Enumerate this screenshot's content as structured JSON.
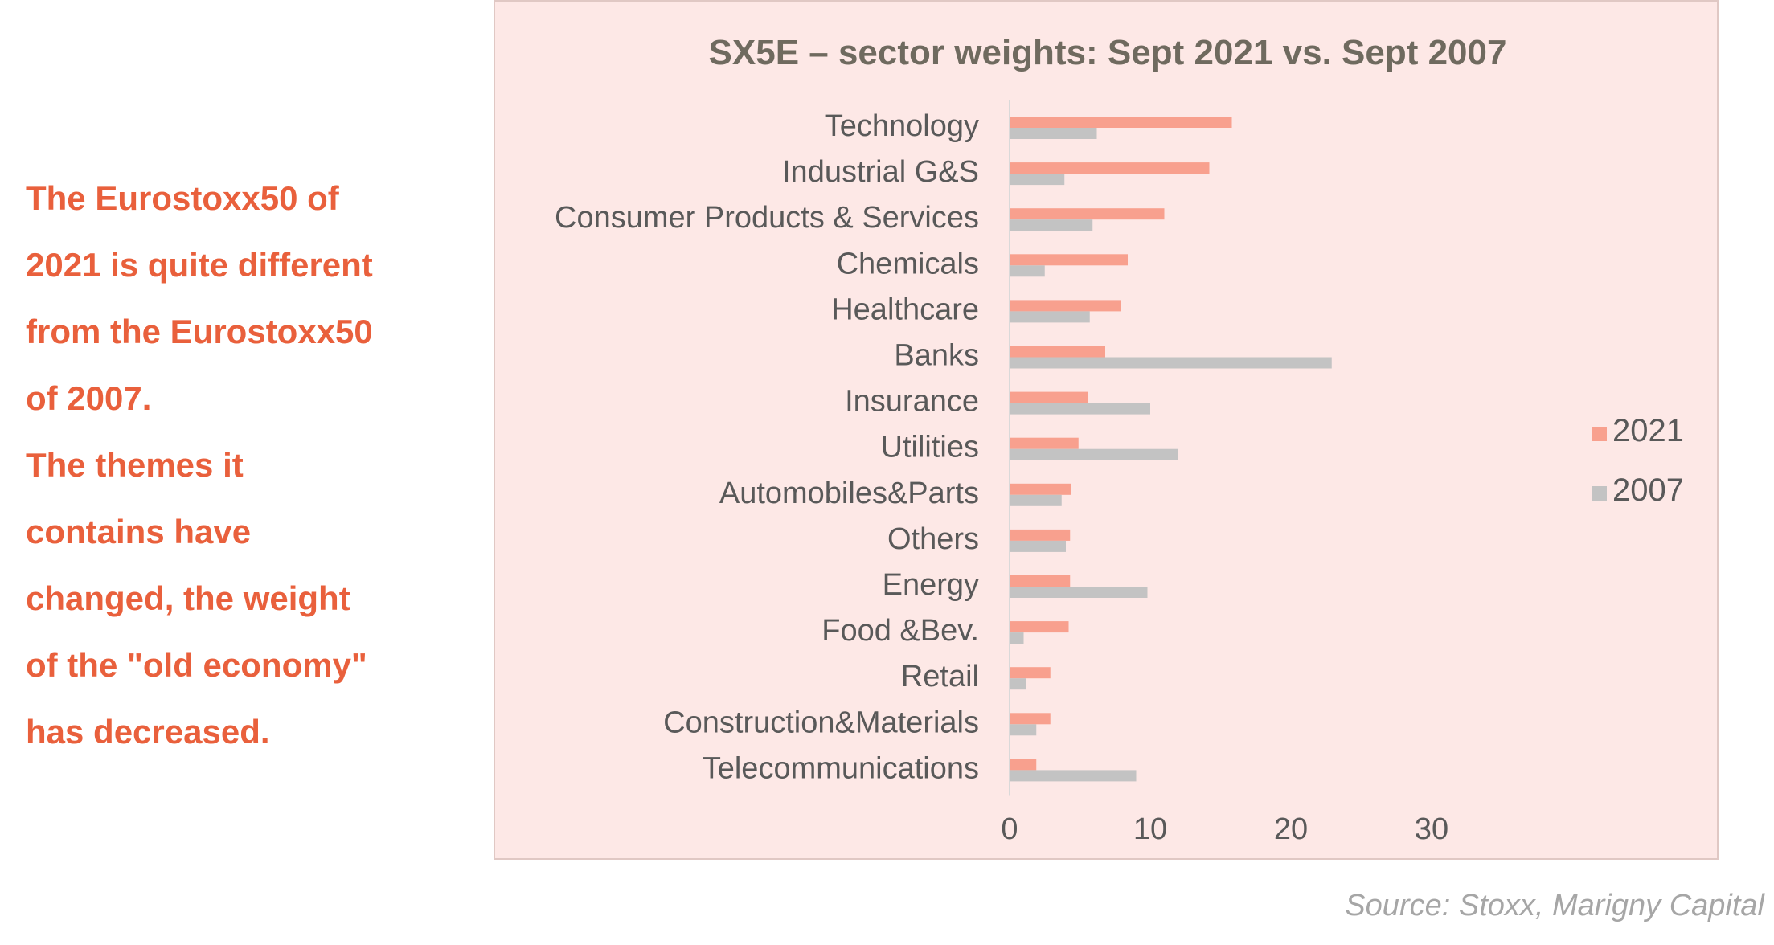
{
  "commentary": {
    "lines": [
      "The Eurostoxx50 of",
      "2021 is quite different",
      "from the Eurostoxx50",
      "of 2007.",
      "The themes it",
      "contains have",
      "changed, the weight",
      "of the \"old economy\"",
      "has decreased."
    ]
  },
  "source": "Source: Stoxx, Marigny Capital",
  "colors": {
    "accent_text": "#e9603c",
    "panel_bg": "#fde8e6",
    "series_2021": "#f8a08e",
    "series_2007": "#c3c3c3",
    "title": "#6f6a5f",
    "labels": "#595959"
  },
  "chart_data": {
    "type": "bar",
    "orientation": "horizontal",
    "title": "SX5E – sector weights: Sept 2021 vs. Sept 2007",
    "categories": [
      "Technology",
      "Industrial G&S",
      "Consumer Products & Services",
      "Chemicals",
      "Healthcare",
      "Banks",
      "Insurance",
      "Utilities",
      "Automobiles&Parts",
      "Others",
      "Energy",
      "Food &Bev.",
      "Retail",
      "Construction&Materials",
      "Telecommunications"
    ],
    "series": [
      {
        "name": "2021",
        "values": [
          15.8,
          14.2,
          11.0,
          8.4,
          7.9,
          6.8,
          5.6,
          4.9,
          4.4,
          4.3,
          4.3,
          4.2,
          2.9,
          2.9,
          1.9
        ]
      },
      {
        "name": "2007",
        "values": [
          6.2,
          3.9,
          5.9,
          2.5,
          5.7,
          22.9,
          10.0,
          12.0,
          3.7,
          4.0,
          9.8,
          1.0,
          1.2,
          1.9,
          9.0
        ]
      }
    ],
    "xlim": [
      0,
      30
    ],
    "xticks": [
      "0",
      "10",
      "20",
      "30"
    ],
    "grid": false,
    "legend_position": "right"
  }
}
